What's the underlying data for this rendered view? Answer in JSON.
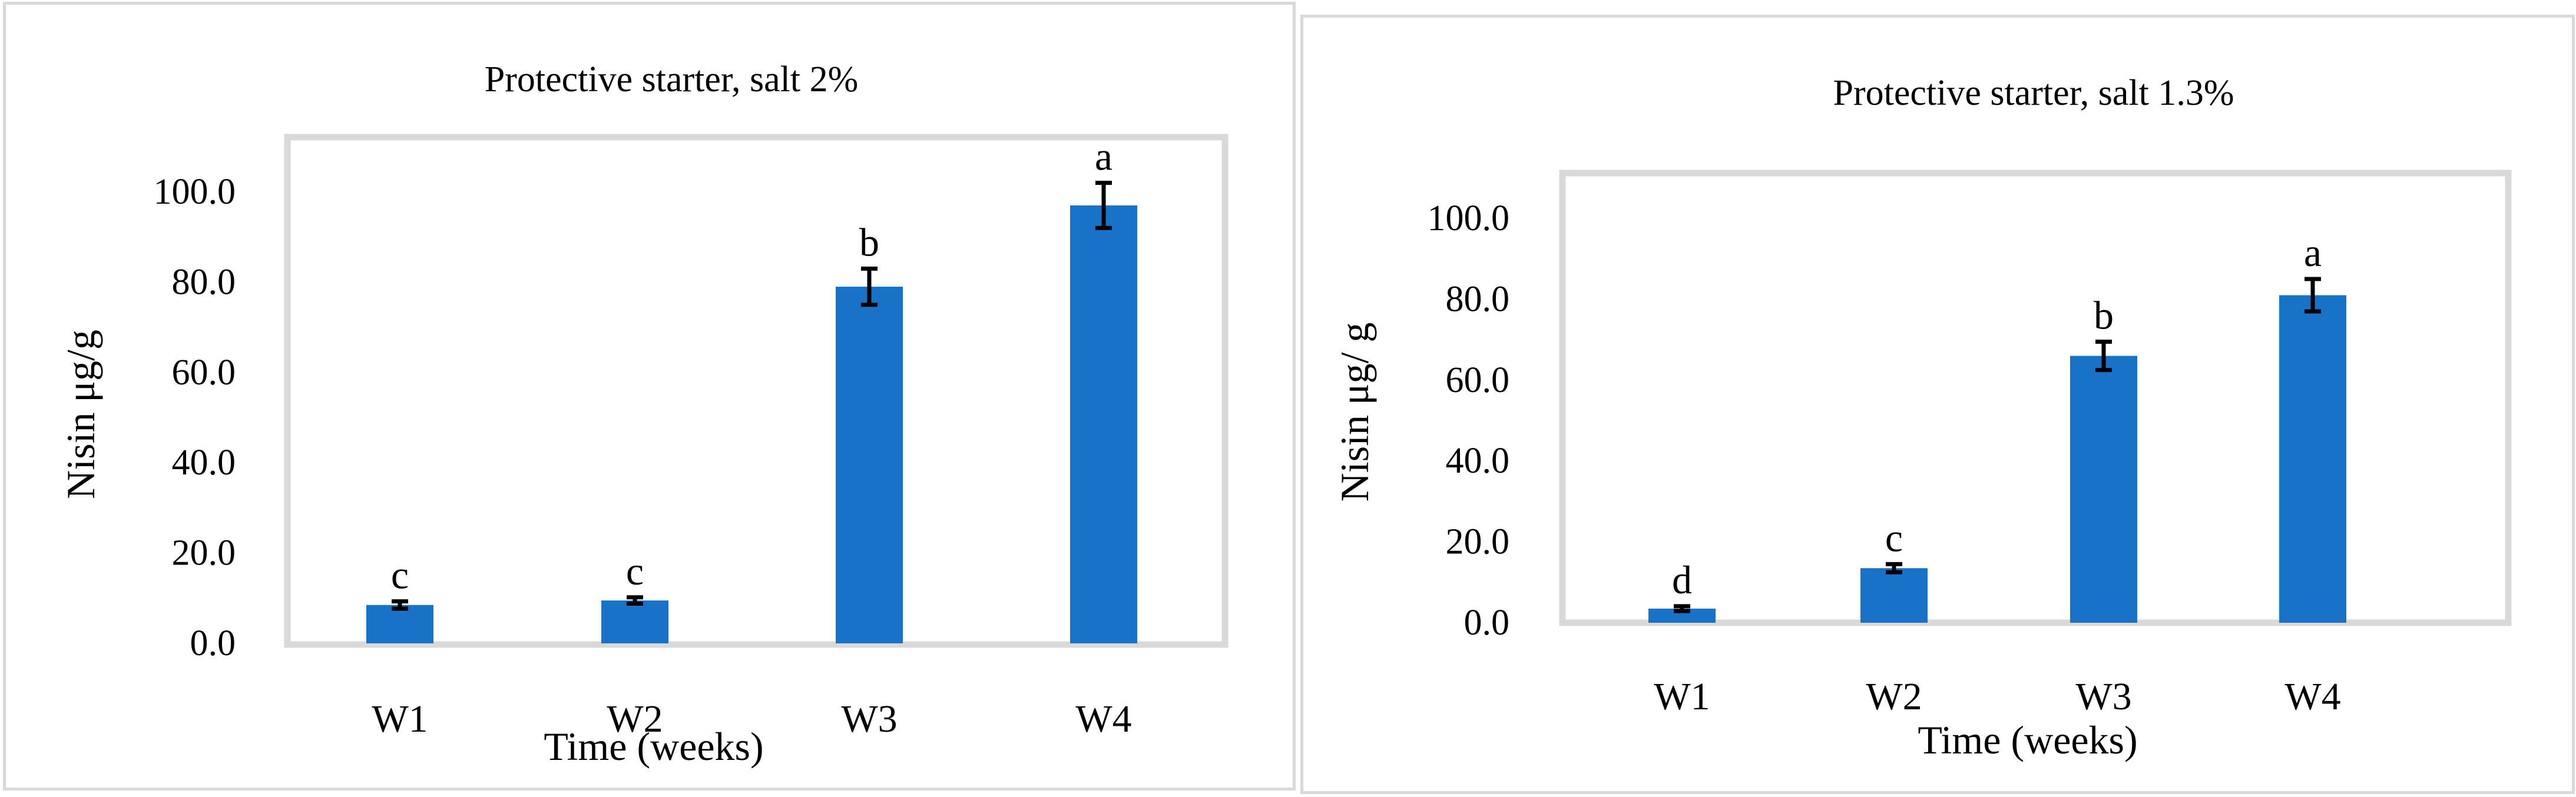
{
  "chart_data": [
    {
      "type": "bar",
      "title": "Protective starter, salt 2%",
      "xlabel": "Time (weeks)",
      "ylabel": "Nisin μg/g",
      "categories": [
        "W1",
        "W2",
        "W3",
        "W4"
      ],
      "values": [
        8.5,
        9.5,
        79.0,
        97.0
      ],
      "errors": [
        0.8,
        0.7,
        4.0,
        5.0
      ],
      "letters": [
        "c",
        "c",
        "b",
        "a"
      ],
      "ylim": [
        0,
        100
      ],
      "yticks": [
        "0.0",
        "20.0",
        "40.0",
        "60.0",
        "80.0",
        "100.0"
      ],
      "bar_color": "#1872c8",
      "grid": false
    },
    {
      "type": "bar",
      "title": "Protective starter, salt 1.3%",
      "xlabel": "Time (weeks)",
      "ylabel": "Nisin μg/ g",
      "categories": [
        "W1",
        "W2",
        "W3",
        "W4"
      ],
      "values": [
        3.5,
        13.5,
        66.0,
        81.0
      ],
      "errors": [
        0.6,
        1.0,
        3.5,
        4.0
      ],
      "letters": [
        "d",
        "c",
        "b",
        "a"
      ],
      "ylim": [
        0,
        100
      ],
      "yticks": [
        "0.0",
        "20.0",
        "40.0",
        "60.0",
        "80.0",
        "100.0"
      ],
      "bar_color": "#1872c8",
      "grid": false
    }
  ]
}
